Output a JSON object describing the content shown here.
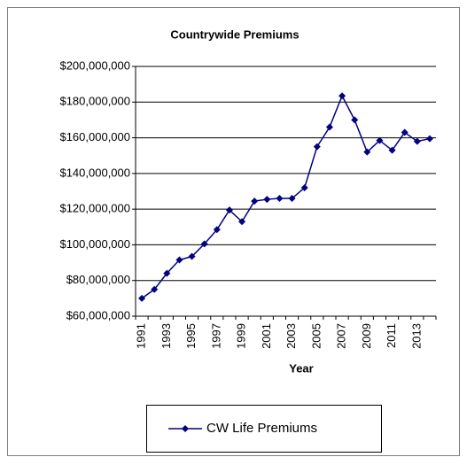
{
  "chart_data": {
    "type": "line",
    "title": "Countrywide Premiums",
    "x_label": "Year",
    "categories": [
      "1991",
      null,
      "1993",
      null,
      "1995",
      null,
      "1997",
      null,
      "1999",
      null,
      "2001",
      null,
      "2003",
      null,
      "2005",
      null,
      "2007",
      null,
      "2009",
      null,
      "2011",
      null,
      "2013",
      null
    ],
    "series": [
      {
        "name": "CW Life Premiums",
        "color": "#000080",
        "values": [
          70000000,
          75000000,
          84000000,
          91500000,
          93500000,
          100500000,
          108500000,
          119500000,
          113000000,
          124500000,
          125500000,
          126000000,
          126000000,
          132000000,
          155000000,
          166000000,
          183500000,
          170000000,
          152000000,
          158500000,
          153000000,
          163000000,
          158000000,
          159500000
        ]
      }
    ],
    "ylim": [
      60000000,
      200000000
    ],
    "yticks": [
      {
        "value": 60000000,
        "label": "$60,000,000"
      },
      {
        "value": 80000000,
        "label": "$80,000,000"
      },
      {
        "value": 100000000,
        "label": "$100,000,000"
      },
      {
        "value": 120000000,
        "label": "$120,000,000"
      },
      {
        "value": 140000000,
        "label": "$140,000,000"
      },
      {
        "value": 160000000,
        "label": "$160,000,000"
      },
      {
        "value": 180000000,
        "label": "$180,000,000"
      },
      {
        "value": 200000000,
        "label": "$200,000,000"
      }
    ],
    "grid": true,
    "legend": "bottom"
  }
}
